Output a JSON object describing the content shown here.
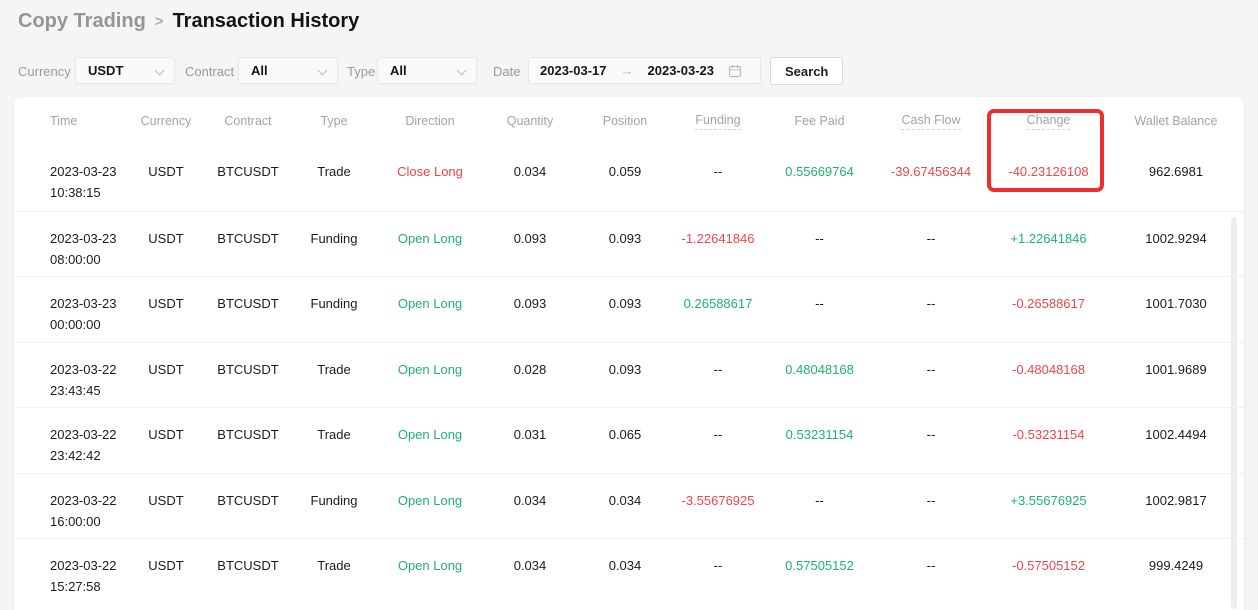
{
  "breadcrumb": {
    "parent": "Copy Trading",
    "separator": ">",
    "current": "Transaction History"
  },
  "filters": {
    "currency": {
      "label": "Currency",
      "value": "USDT"
    },
    "contract": {
      "label": "Contract",
      "value": "All"
    },
    "type": {
      "label": "Type",
      "value": "All"
    },
    "date": {
      "label": "Date",
      "start": "2023-03-17",
      "arrow": "→",
      "end": "2023-03-23"
    },
    "search_label": "Search"
  },
  "table": {
    "columns": [
      {
        "key": "time",
        "label": "Time"
      },
      {
        "key": "currency",
        "label": "Currency"
      },
      {
        "key": "contract",
        "label": "Contract"
      },
      {
        "key": "type",
        "label": "Type"
      },
      {
        "key": "direction",
        "label": "Direction",
        "colored": "direction"
      },
      {
        "key": "quantity",
        "label": "Quantity"
      },
      {
        "key": "position",
        "label": "Position"
      },
      {
        "key": "funding",
        "label": "Funding",
        "colored": "signed",
        "tooltip": true
      },
      {
        "key": "fee_paid",
        "label": "Fee Paid",
        "colored": "signed"
      },
      {
        "key": "cash_flow",
        "label": "Cash Flow",
        "colored": "signed",
        "tooltip": true
      },
      {
        "key": "change",
        "label": "Change",
        "colored": "signed",
        "tooltip": true
      },
      {
        "key": "wallet_balance",
        "label": "Wallet Balance"
      }
    ],
    "rows": [
      {
        "time": [
          "2023-03-23",
          "10:38:15"
        ],
        "currency": "USDT",
        "contract": "BTCUSDT",
        "type": "Trade",
        "direction": "Close Long",
        "quantity": "0.034",
        "position": "0.059",
        "funding": "--",
        "fee_paid": "0.55669764",
        "cash_flow": "-39.67456344",
        "change": "-40.23126108",
        "wallet_balance": "962.6981"
      },
      {
        "time": [
          "2023-03-23",
          "08:00:00"
        ],
        "currency": "USDT",
        "contract": "BTCUSDT",
        "type": "Funding",
        "direction": "Open Long",
        "quantity": "0.093",
        "position": "0.093",
        "funding": "-1.22641846",
        "fee_paid": "--",
        "cash_flow": "--",
        "change": "+1.22641846",
        "wallet_balance": "1002.9294"
      },
      {
        "time": [
          "2023-03-23",
          "00:00:00"
        ],
        "currency": "USDT",
        "contract": "BTCUSDT",
        "type": "Funding",
        "direction": "Open Long",
        "quantity": "0.093",
        "position": "0.093",
        "funding": "0.26588617",
        "fee_paid": "--",
        "cash_flow": "--",
        "change": "-0.26588617",
        "wallet_balance": "1001.7030"
      },
      {
        "time": [
          "2023-03-22",
          "23:43:45"
        ],
        "currency": "USDT",
        "contract": "BTCUSDT",
        "type": "Trade",
        "direction": "Open Long",
        "quantity": "0.028",
        "position": "0.093",
        "funding": "--",
        "fee_paid": "0.48048168",
        "cash_flow": "--",
        "change": "-0.48048168",
        "wallet_balance": "1001.9689"
      },
      {
        "time": [
          "2023-03-22",
          "23:42:42"
        ],
        "currency": "USDT",
        "contract": "BTCUSDT",
        "type": "Trade",
        "direction": "Open Long",
        "quantity": "0.031",
        "position": "0.065",
        "funding": "--",
        "fee_paid": "0.53231154",
        "cash_flow": "--",
        "change": "-0.53231154",
        "wallet_balance": "1002.4494"
      },
      {
        "time": [
          "2023-03-22",
          "16:00:00"
        ],
        "currency": "USDT",
        "contract": "BTCUSDT",
        "type": "Funding",
        "direction": "Open Long",
        "quantity": "0.034",
        "position": "0.034",
        "funding": "-3.55676925",
        "fee_paid": "--",
        "cash_flow": "--",
        "change": "+3.55676925",
        "wallet_balance": "1002.9817"
      },
      {
        "time": [
          "2023-03-22",
          "15:27:58"
        ],
        "currency": "USDT",
        "contract": "BTCUSDT",
        "type": "Trade",
        "direction": "Open Long",
        "quantity": "0.034",
        "position": "0.034",
        "funding": "--",
        "fee_paid": "0.57505152",
        "cash_flow": "--",
        "change": "-0.57505152",
        "wallet_balance": "999.4249"
      }
    ]
  },
  "annotation": {
    "type": "highlight-box",
    "target": "change-column-header-and-first-row-value",
    "color": "#f02d2d"
  },
  "colors": {
    "positive": "#20b26c",
    "negative": "#ef454a"
  }
}
